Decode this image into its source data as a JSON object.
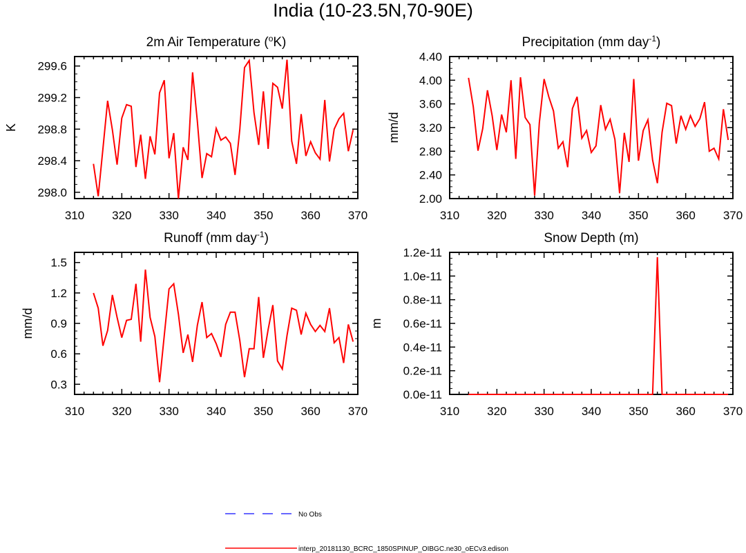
{
  "figure_title": "India (10-23.5N,70-90E)",
  "colors": {
    "model": "#ff0000",
    "obs": "#3333ff",
    "axis": "#000000"
  },
  "legend": [
    {
      "label": "No Obs",
      "style": "dashed",
      "color": "#3333ff"
    },
    {
      "label": "interp_20181130_BCRC_1850SPINUP_OIBGC.ne30_oECv3.edison",
      "style": "solid",
      "color": "#ff0000"
    }
  ],
  "chart_data": [
    {
      "type": "line",
      "title_parts": [
        "2m Air Temperature (",
        "o",
        "K)"
      ],
      "ylabel": "K",
      "xlim": [
        310,
        370
      ],
      "ylim": [
        297.92,
        299.72
      ],
      "xticks": [
        310,
        320,
        330,
        340,
        350,
        360,
        370
      ],
      "yticks": [
        298.0,
        298.4,
        298.8,
        299.2,
        299.6
      ],
      "ytick_labels": [
        "298.0",
        "298.4",
        "298.8",
        "299.2",
        "299.6"
      ],
      "x": [
        314,
        315,
        316,
        317,
        318,
        319,
        320,
        321,
        322,
        323,
        324,
        325,
        326,
        327,
        328,
        329,
        330,
        331,
        332,
        333,
        334,
        335,
        336,
        337,
        338,
        339,
        340,
        341,
        342,
        343,
        344,
        345,
        346,
        347,
        348,
        349,
        350,
        351,
        352,
        353,
        354,
        355,
        356,
        357,
        358,
        359,
        360,
        361,
        362,
        363,
        364,
        365,
        366,
        367,
        368,
        369
      ],
      "series": [
        {
          "name": "interp_20181130_BCRC_1850SPINUP_OIBGC.ne30_oECv3.edison",
          "values": [
            298.36,
            297.95,
            298.55,
            299.16,
            298.79,
            298.35,
            298.94,
            299.11,
            299.09,
            298.32,
            298.73,
            298.17,
            298.71,
            298.48,
            299.26,
            299.42,
            298.43,
            298.75,
            297.92,
            298.57,
            298.41,
            299.52,
            298.9,
            298.18,
            298.49,
            298.45,
            298.81,
            298.66,
            298.7,
            298.62,
            298.22,
            298.8,
            299.58,
            299.67,
            299.01,
            298.6,
            299.28,
            298.55,
            299.38,
            299.33,
            299.06,
            299.68,
            298.65,
            298.36,
            298.99,
            298.46,
            298.64,
            298.5,
            298.42,
            299.17,
            298.39,
            298.8,
            298.93,
            299.0,
            298.52,
            298.79
          ]
        }
      ]
    },
    {
      "type": "line",
      "title_parts": [
        "Precipitation (mm day",
        "-1",
        ")"
      ],
      "ylabel": "mm/d",
      "xlim": [
        310,
        370
      ],
      "ylim": [
        2.0,
        4.4
      ],
      "xticks": [
        310,
        320,
        330,
        340,
        350,
        360,
        370
      ],
      "yticks": [
        2.0,
        2.4,
        2.8,
        3.2,
        3.6,
        4.0,
        4.4
      ],
      "ytick_labels": [
        "2.00",
        "2.40",
        "2.80",
        "3.20",
        "3.60",
        "4.00",
        "4.40"
      ],
      "x": [
        314,
        315,
        316,
        317,
        318,
        319,
        320,
        321,
        322,
        323,
        324,
        325,
        326,
        327,
        328,
        329,
        330,
        331,
        332,
        333,
        334,
        335,
        336,
        337,
        338,
        339,
        340,
        341,
        342,
        343,
        344,
        345,
        346,
        347,
        348,
        349,
        350,
        351,
        352,
        353,
        354,
        355,
        356,
        357,
        358,
        359,
        360,
        361,
        362,
        363,
        364,
        365,
        366,
        367,
        368,
        369
      ],
      "series": [
        {
          "name": "interp_20181130_BCRC_1850SPINUP_OIBGC.ne30_oECv3.edison",
          "values": [
            4.04,
            3.55,
            2.81,
            3.18,
            3.83,
            3.4,
            2.82,
            3.42,
            3.12,
            4.0,
            2.67,
            4.05,
            3.37,
            3.25,
            2.05,
            3.28,
            4.02,
            3.72,
            3.48,
            2.85,
            2.96,
            2.53,
            3.52,
            3.72,
            3.02,
            3.15,
            2.78,
            2.89,
            3.58,
            3.17,
            3.34,
            3.0,
            2.09,
            3.11,
            2.62,
            4.02,
            2.64,
            3.15,
            3.33,
            2.65,
            2.26,
            3.12,
            3.61,
            3.57,
            2.93,
            3.4,
            3.17,
            3.4,
            3.22,
            3.35,
            3.63,
            2.8,
            2.85,
            2.67,
            3.51,
            2.99
          ]
        }
      ]
    },
    {
      "type": "line",
      "title_parts": [
        "Runoff (mm day",
        "-1",
        ")"
      ],
      "ylabel": "mm/d",
      "xlim": [
        310,
        370
      ],
      "ylim": [
        0.2,
        1.6
      ],
      "xticks": [
        310,
        320,
        330,
        340,
        350,
        360,
        370
      ],
      "yticks": [
        0.3,
        0.6,
        0.9,
        1.2,
        1.5
      ],
      "ytick_labels": [
        "0.3",
        "0.6",
        "0.9",
        "1.2",
        "1.5"
      ],
      "x": [
        314,
        315,
        316,
        317,
        318,
        319,
        320,
        321,
        322,
        323,
        324,
        325,
        326,
        327,
        328,
        329,
        330,
        331,
        332,
        333,
        334,
        335,
        336,
        337,
        338,
        339,
        340,
        341,
        342,
        343,
        344,
        345,
        346,
        347,
        348,
        349,
        350,
        351,
        352,
        353,
        354,
        355,
        356,
        357,
        358,
        359,
        360,
        361,
        362,
        363,
        364,
        365,
        366,
        367,
        368,
        369
      ],
      "series": [
        {
          "name": "interp_20181130_BCRC_1850SPINUP_OIBGC.ne30_oECv3.edison",
          "values": [
            1.2,
            1.05,
            0.68,
            0.83,
            1.18,
            0.96,
            0.76,
            0.93,
            0.94,
            1.29,
            0.72,
            1.43,
            0.96,
            0.77,
            0.32,
            0.78,
            1.24,
            1.29,
            0.99,
            0.61,
            0.79,
            0.52,
            0.88,
            1.11,
            0.76,
            0.8,
            0.7,
            0.57,
            0.89,
            1.01,
            1.01,
            0.73,
            0.37,
            0.65,
            0.65,
            1.16,
            0.56,
            0.84,
            1.08,
            0.53,
            0.45,
            0.78,
            1.05,
            1.03,
            0.79,
            1.0,
            0.89,
            0.82,
            0.88,
            0.82,
            1.05,
            0.71,
            0.76,
            0.51,
            0.89,
            0.72
          ]
        }
      ]
    },
    {
      "type": "line",
      "title_parts": [
        "Snow Depth (m)",
        "",
        ""
      ],
      "ylabel": "m",
      "xlim": [
        310,
        370
      ],
      "ylim": [
        0.0,
        1.2e-11
      ],
      "xticks": [
        310,
        320,
        330,
        340,
        350,
        360,
        370
      ],
      "yticks": [
        0.0,
        2e-12,
        4e-12,
        6e-12,
        8e-12,
        1e-11,
        1.2e-11
      ],
      "ytick_labels": [
        "0.0e-11",
        "0.2e-11",
        "0.4e-11",
        "0.6e-11",
        "0.8e-11",
        "1.0e-11",
        "1.2e-11"
      ],
      "x": [
        314,
        315,
        316,
        317,
        318,
        319,
        320,
        321,
        322,
        323,
        324,
        325,
        326,
        327,
        328,
        329,
        330,
        331,
        332,
        333,
        334,
        335,
        336,
        337,
        338,
        339,
        340,
        341,
        342,
        343,
        344,
        345,
        346,
        347,
        348,
        349,
        350,
        351,
        352,
        353,
        354,
        355,
        356,
        357,
        358,
        359,
        360,
        361,
        362,
        363,
        364,
        365,
        366,
        367,
        368,
        369
      ],
      "series": [
        {
          "name": "interp_20181130_BCRC_1850SPINUP_OIBGC.ne30_oECv3.edison",
          "values": [
            0,
            0,
            0,
            0,
            0,
            0,
            0,
            0,
            0,
            0,
            0,
            0,
            0,
            0,
            0,
            0,
            0,
            0,
            0,
            0,
            0,
            0,
            0,
            0,
            0,
            0,
            0,
            0,
            0,
            0,
            0,
            0,
            0,
            0,
            0,
            0,
            0,
            0,
            0,
            0,
            1.16e-11,
            0,
            0,
            0,
            0,
            0,
            0,
            0,
            0,
            0,
            0,
            0,
            0,
            0,
            0,
            0
          ]
        }
      ]
    }
  ]
}
